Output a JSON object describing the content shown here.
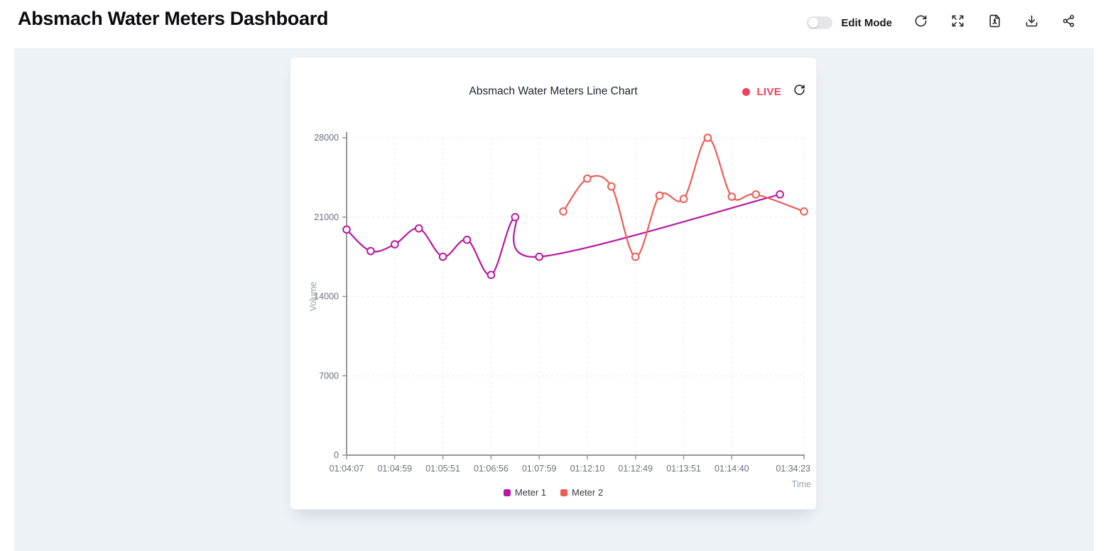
{
  "header": {
    "title": "Absmach Water Meters Dashboard",
    "edit_mode_label": "Edit Mode",
    "toolbar_icons": [
      "refresh-icon",
      "fullscreen-icon",
      "export-pdf-icon",
      "download-icon",
      "share-icon"
    ],
    "edit_mode_on": false
  },
  "card": {
    "title": "Absmach Water Meters Line Chart",
    "live_label": "LIVE",
    "live_color": "#f43f5e"
  },
  "chart_data": {
    "type": "line",
    "title": "Absmach Water Meters Line Chart",
    "xlabel": "Time",
    "ylabel": "Volume",
    "ylim": [
      0,
      28000
    ],
    "y_ticks": [
      0,
      7000,
      14000,
      21000,
      28000
    ],
    "x_tick_labels": [
      "01:04:07",
      "01:04:59",
      "01:05:51",
      "01:06:56",
      "01:07:59",
      "01:12:10",
      "01:12:49",
      "01:13:51",
      "01:14:40",
      "01:34:23"
    ],
    "x_tick_slots": [
      0,
      2,
      4,
      6,
      8,
      10,
      12,
      14,
      16,
      19
    ],
    "slot_count": 20,
    "grid": {
      "horizontal_dashed": true,
      "vertical_dashed": true
    },
    "legend_position": "bottom",
    "line_style": "smooth",
    "marker": "open-circle",
    "series": [
      {
        "name": "Meter 1",
        "color": "#b8189e",
        "points": [
          [
            0,
            19900
          ],
          [
            1,
            18000
          ],
          [
            2,
            18600
          ],
          [
            3,
            20000
          ],
          [
            4,
            17500
          ],
          [
            5,
            19000
          ],
          [
            6,
            15900
          ],
          [
            7,
            21000
          ],
          [
            8,
            17500
          ],
          [
            18,
            23000
          ]
        ]
      },
      {
        "name": "Meter 2",
        "color": "#ef5b55",
        "points": [
          [
            9,
            21500
          ],
          [
            10,
            24400
          ],
          [
            11,
            23700
          ],
          [
            12,
            17500
          ],
          [
            13,
            22900
          ],
          [
            14,
            22600
          ],
          [
            15,
            28000
          ],
          [
            16,
            22800
          ],
          [
            17,
            23000
          ],
          [
            19,
            21500
          ]
        ]
      }
    ]
  }
}
